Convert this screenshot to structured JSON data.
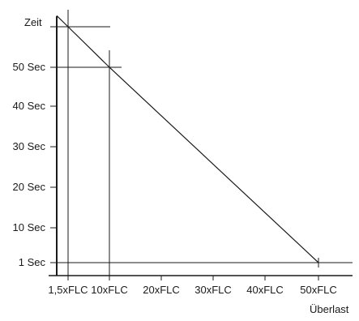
{
  "chart_data": {
    "type": "line",
    "title": "",
    "ylabel": "Zeit",
    "xlabel": "Überlast",
    "y_tick_labels": [
      "50 Sec",
      "40 Sec",
      "30 Sec",
      "20 Sec",
      "10 Sec",
      "1 Sec"
    ],
    "x_tick_labels": [
      "1,5xFLC",
      "10xFLC",
      "20xFLC",
      "30xFLC",
      "40xFLC",
      "50xFLC"
    ],
    "grid": false,
    "series": [
      {
        "x": [
          1.5,
          10,
          50
        ],
        "y": [
          60,
          50,
          1
        ]
      }
    ],
    "reference_lines": [
      {
        "orientation": "vertical",
        "x": 1.5
      },
      {
        "orientation": "vertical",
        "x": 10
      },
      {
        "orientation": "horizontal",
        "y": 60
      },
      {
        "orientation": "horizontal",
        "y": 50
      },
      {
        "orientation": "horizontal",
        "y": 1
      }
    ]
  }
}
